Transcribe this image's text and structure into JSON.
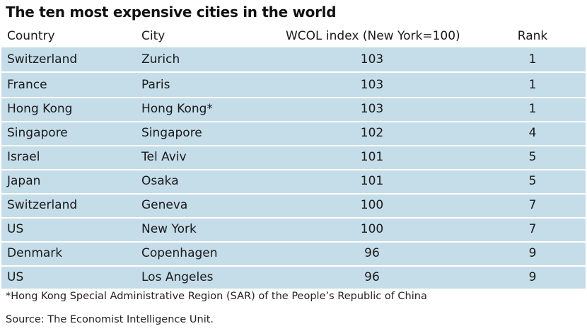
{
  "title": "The ten most expensive cities in the world",
  "table": {
    "headers": {
      "country": "Country",
      "city": "City",
      "index": "WCOL index (New York=100)",
      "rank": "Rank"
    },
    "rows": [
      {
        "country": "Switzerland",
        "city": "Zurich",
        "index": "103",
        "rank": "1"
      },
      {
        "country": "France",
        "city": "Paris",
        "index": "103",
        "rank": "1"
      },
      {
        "country": "Hong Kong",
        "city": "Hong Kong*",
        "index": "103",
        "rank": "1"
      },
      {
        "country": "Singapore",
        "city": "Singapore",
        "index": "102",
        "rank": "4"
      },
      {
        "country": "Israel",
        "city": "Tel Aviv",
        "index": "101",
        "rank": "5"
      },
      {
        "country": "Japan",
        "city": "Osaka",
        "index": "101",
        "rank": "5"
      },
      {
        "country": "Switzerland",
        "city": "Geneva",
        "index": "100",
        "rank": "7"
      },
      {
        "country": "US",
        "city": "New York",
        "index": "100",
        "rank": "7"
      },
      {
        "country": "Denmark",
        "city": "Copenhagen",
        "index": "96",
        "rank": "9"
      },
      {
        "country": "US",
        "city": "Los Angeles",
        "index": "96",
        "rank": "9"
      }
    ]
  },
  "footnote": "*Hong Kong Special Administrative Region (SAR) of the People’s Republic of China",
  "source": "Source: The Economist Intelligence Unit.",
  "colors": {
    "row_background": "#c5dde9",
    "divider": "#ffffff",
    "text": "#1a1a1a"
  }
}
